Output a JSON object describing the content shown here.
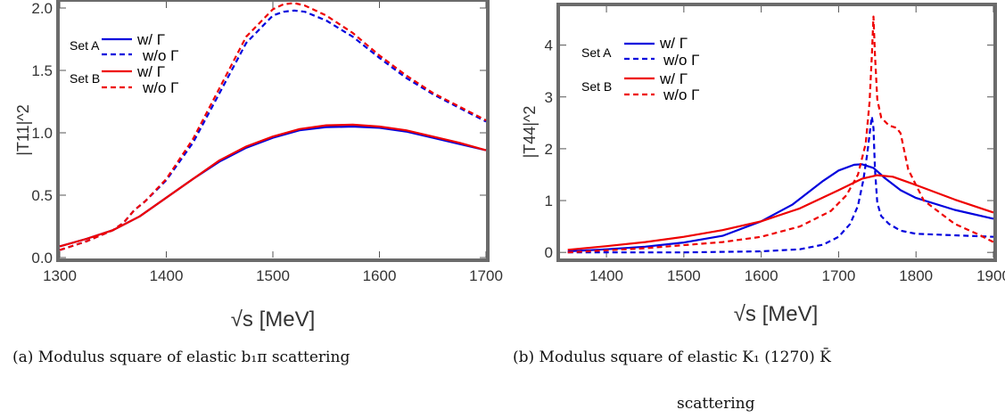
{
  "chart_data": [
    {
      "type": "line",
      "panel": "a",
      "ylabel": "|T11|^2",
      "xlabel": "√s  [MeV]",
      "xlim": [
        1300,
        1700
      ],
      "ylim": [
        0.0,
        2.05
      ],
      "xticks": [
        1300,
        1400,
        1500,
        1600,
        1700
      ],
      "yticks": [
        0.0,
        0.5,
        1.0,
        1.5,
        2.0
      ],
      "ytick_labels": [
        "0.0",
        "0.5",
        "1.0",
        "1.5",
        "2.0"
      ],
      "grid": false,
      "legend": {
        "position": "top-left",
        "groups": [
          {
            "label": "Set A",
            "entries": [
              "w/ Γ",
              "w/o Γ"
            ]
          },
          {
            "label": "Set B",
            "entries": [
              "w/ Γ",
              "w/o Γ"
            ]
          }
        ]
      },
      "series": [
        {
          "name": "Set A w/ Γ",
          "color": "#0000dd",
          "dash": "solid",
          "x": [
            1300,
            1325,
            1350,
            1375,
            1400,
            1425,
            1450,
            1475,
            1500,
            1525,
            1550,
            1575,
            1600,
            1625,
            1650,
            1675,
            1700
          ],
          "y": [
            0.09,
            0.15,
            0.22,
            0.33,
            0.48,
            0.63,
            0.77,
            0.88,
            0.96,
            1.02,
            1.045,
            1.05,
            1.04,
            1.01,
            0.96,
            0.91,
            0.86
          ]
        },
        {
          "name": "Set A w/o Γ",
          "color": "#0000dd",
          "dash": "dashed",
          "x": [
            1300,
            1325,
            1350,
            1360,
            1370,
            1380,
            1400,
            1425,
            1450,
            1475,
            1500,
            1510,
            1520,
            1530,
            1550,
            1575,
            1600,
            1625,
            1650,
            1675,
            1700
          ],
          "y": [
            0.06,
            0.13,
            0.22,
            0.28,
            0.38,
            0.45,
            0.62,
            0.92,
            1.32,
            1.72,
            1.94,
            1.97,
            1.98,
            1.97,
            1.9,
            1.77,
            1.6,
            1.44,
            1.31,
            1.2,
            1.09
          ]
        },
        {
          "name": "Set B w/ Γ",
          "color": "#ee0000",
          "dash": "solid",
          "x": [
            1300,
            1325,
            1350,
            1375,
            1400,
            1425,
            1450,
            1475,
            1500,
            1525,
            1550,
            1575,
            1600,
            1625,
            1650,
            1675,
            1700
          ],
          "y": [
            0.09,
            0.15,
            0.22,
            0.33,
            0.48,
            0.63,
            0.78,
            0.89,
            0.97,
            1.03,
            1.06,
            1.065,
            1.05,
            1.02,
            0.97,
            0.92,
            0.86
          ]
        },
        {
          "name": "Set B w/o Γ",
          "color": "#ee0000",
          "dash": "dashed",
          "x": [
            1300,
            1325,
            1350,
            1360,
            1370,
            1380,
            1400,
            1425,
            1450,
            1475,
            1500,
            1510,
            1520,
            1530,
            1550,
            1575,
            1600,
            1625,
            1650,
            1675,
            1700
          ],
          "y": [
            0.06,
            0.13,
            0.22,
            0.28,
            0.38,
            0.45,
            0.63,
            0.95,
            1.36,
            1.77,
            1.99,
            2.03,
            2.04,
            2.02,
            1.94,
            1.8,
            1.62,
            1.46,
            1.32,
            1.21,
            1.1
          ]
        }
      ]
    },
    {
      "type": "line",
      "panel": "b",
      "ylabel": "|T44|^2",
      "xlabel": "√s  [MeV]",
      "xlim": [
        1340,
        1900
      ],
      "ylim": [
        -0.1,
        4.75
      ],
      "xticks": [
        1400,
        1500,
        1600,
        1700,
        1800,
        1900
      ],
      "yticks": [
        0,
        1,
        2,
        3,
        4
      ],
      "ytick_labels": [
        "0",
        "1",
        "2",
        "3",
        "4"
      ],
      "grid": false,
      "legend": {
        "position": "top-left",
        "groups": [
          {
            "label": "Set A",
            "entries": [
              "w/ Γ",
              "w/o Γ"
            ]
          },
          {
            "label": "Set B",
            "entries": [
              "w/ Γ",
              "w/o Γ"
            ]
          }
        ]
      },
      "series": [
        {
          "name": "Set A w/ Γ",
          "color": "#0000dd",
          "dash": "solid",
          "x": [
            1350,
            1400,
            1450,
            1500,
            1550,
            1600,
            1640,
            1680,
            1700,
            1720,
            1730,
            1745,
            1760,
            1780,
            1800,
            1850,
            1900
          ],
          "y": [
            0.02,
            0.06,
            0.11,
            0.19,
            0.32,
            0.6,
            0.92,
            1.38,
            1.58,
            1.69,
            1.7,
            1.63,
            1.43,
            1.2,
            1.05,
            0.82,
            0.65
          ]
        },
        {
          "name": "Set A w/o Γ",
          "color": "#0000dd",
          "dash": "dashed",
          "x": [
            1350,
            1500,
            1600,
            1650,
            1680,
            1700,
            1715,
            1725,
            1732,
            1737,
            1741,
            1743,
            1745,
            1747,
            1750,
            1755,
            1765,
            1780,
            1800,
            1850,
            1900
          ],
          "y": [
            0,
            0,
            0.02,
            0.06,
            0.15,
            0.3,
            0.55,
            0.9,
            1.4,
            1.9,
            2.4,
            2.62,
            2.4,
            1.6,
            0.95,
            0.7,
            0.55,
            0.42,
            0.36,
            0.33,
            0.3
          ]
        },
        {
          "name": "Set B w/ Γ",
          "color": "#ee0000",
          "dash": "solid",
          "x": [
            1350,
            1400,
            1450,
            1500,
            1550,
            1600,
            1650,
            1700,
            1730,
            1750,
            1770,
            1800,
            1850,
            1900
          ],
          "y": [
            0.05,
            0.12,
            0.2,
            0.3,
            0.43,
            0.6,
            0.85,
            1.2,
            1.42,
            1.49,
            1.46,
            1.3,
            1.02,
            0.77
          ]
        },
        {
          "name": "Set B w/o Γ",
          "color": "#ee0000",
          "dash": "dashed",
          "x": [
            1350,
            1450,
            1550,
            1600,
            1650,
            1690,
            1710,
            1725,
            1735,
            1740,
            1743,
            1745,
            1747,
            1750,
            1755,
            1765,
            1775,
            1780,
            1790,
            1810,
            1850,
            1880,
            1900
          ],
          "y": [
            0,
            0.08,
            0.2,
            0.3,
            0.5,
            0.8,
            1.1,
            1.5,
            2.1,
            2.9,
            3.8,
            4.55,
            3.8,
            2.95,
            2.6,
            2.45,
            2.4,
            2.3,
            1.6,
            1.0,
            0.55,
            0.35,
            0.2
          ]
        }
      ]
    }
  ],
  "captions": {
    "a": "(a) Modulus square of elastic b₁π scattering",
    "b_line1": "(b) Modulus square of elastic K₁ (1270) K̄",
    "b_line2": "scattering"
  }
}
